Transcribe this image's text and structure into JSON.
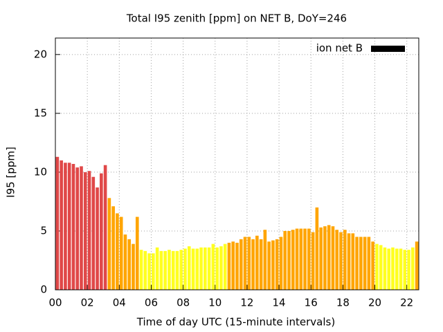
{
  "chart_data": {
    "type": "bar",
    "title": "Total I95 zenith [ppm] on NET B, DoY=246",
    "xlabel": "Time of day UTC (15-minute intervals)",
    "ylabel": "I95 [ppm]",
    "x": [
      0,
      0.25,
      0.5,
      0.75,
      1,
      1.25,
      1.5,
      1.75,
      2,
      2.25,
      2.5,
      2.75,
      3,
      3.25,
      3.5,
      3.75,
      4,
      4.25,
      4.5,
      4.75,
      5,
      5.25,
      5.5,
      5.75,
      6,
      6.25,
      6.5,
      6.75,
      7,
      7.25,
      7.5,
      7.75,
      8,
      8.25,
      8.5,
      8.75,
      9,
      9.25,
      9.5,
      9.75,
      10,
      10.25,
      10.5,
      10.75,
      11,
      11.25,
      11.5,
      11.75,
      12,
      12.25,
      12.5,
      12.75,
      13,
      13.25,
      13.5,
      13.75,
      14,
      14.25,
      14.5,
      14.75,
      15,
      15.25,
      15.5,
      15.75,
      16,
      16.25,
      16.5,
      16.75,
      17,
      17.25,
      17.5,
      17.75,
      18,
      18.25,
      18.5,
      18.75,
      19,
      19.25,
      19.5,
      19.75,
      20,
      20.25,
      20.5,
      20.75,
      21,
      21.25,
      21.5,
      21.75,
      22,
      22.25,
      22.5
    ],
    "series": [
      {
        "name": "ion net B",
        "color": "#000000",
        "values": [
          11.3,
          11.0,
          10.8,
          10.8,
          10.7,
          10.4,
          10.5,
          10.0,
          10.1,
          9.6,
          8.7,
          9.9,
          10.6,
          7.8,
          7.1,
          6.5,
          6.2,
          4.7,
          4.3,
          3.9,
          6.2,
          3.4,
          3.3,
          3.1,
          3.1,
          3.6,
          3.3,
          3.3,
          3.4,
          3.3,
          3.3,
          3.4,
          3.5,
          3.7,
          3.5,
          3.5,
          3.6,
          3.6,
          3.6,
          3.9,
          3.6,
          3.7,
          3.9,
          4.0,
          4.1,
          4.0,
          4.3,
          4.5,
          4.5,
          4.3,
          4.6,
          4.3,
          5.1,
          4.1,
          4.2,
          4.3,
          4.5,
          5.0,
          5.0,
          5.1,
          5.2,
          5.2,
          5.2,
          5.2,
          4.9,
          7.0,
          5.3,
          5.4,
          5.5,
          5.4,
          5.1,
          4.9,
          5.1,
          4.8,
          4.8,
          4.5,
          4.5,
          4.5,
          4.5,
          4.1,
          3.9,
          3.8,
          3.6,
          3.5,
          3.6,
          3.5,
          3.5,
          3.4,
          3.4,
          3.6,
          4.1
        ],
        "colors": [
          "#e04848",
          "#e04848",
          "#e04848",
          "#e04848",
          "#e04848",
          "#e04848",
          "#e04848",
          "#e04848",
          "#e04848",
          "#e04848",
          "#e04848",
          "#e04848",
          "#e04848",
          "#ffa500",
          "#ffa500",
          "#ffa500",
          "#ffa500",
          "#ffa500",
          "#ffa500",
          "#ffa500",
          "#ffa500",
          "#ffff20",
          "#ffff20",
          "#ffff20",
          "#ffff20",
          "#ffff20",
          "#ffff20",
          "#ffff20",
          "#ffff20",
          "#ffff20",
          "#ffff20",
          "#ffff20",
          "#ffff20",
          "#ffff20",
          "#ffff20",
          "#ffff20",
          "#ffff20",
          "#ffff20",
          "#ffff20",
          "#ffff20",
          "#ffff20",
          "#ffff20",
          "#ffff20",
          "#ffa500",
          "#ffa500",
          "#ffa500",
          "#ffa500",
          "#ffa500",
          "#ffa500",
          "#ffa500",
          "#ffa500",
          "#ffa500",
          "#ffa500",
          "#ffa500",
          "#ffa500",
          "#ffa500",
          "#ffa500",
          "#ffa500",
          "#ffa500",
          "#ffa500",
          "#ffa500",
          "#ffa500",
          "#ffa500",
          "#ffa500",
          "#ffa500",
          "#ffa500",
          "#ffa500",
          "#ffa500",
          "#ffa500",
          "#ffa500",
          "#ffa500",
          "#ffa500",
          "#ffa500",
          "#ffa500",
          "#ffa500",
          "#ffa500",
          "#ffa500",
          "#ffa500",
          "#ffa500",
          "#ffa500",
          "#ffff20",
          "#ffff20",
          "#ffff20",
          "#ffff20",
          "#ffff20",
          "#ffff20",
          "#ffff20",
          "#ffff20",
          "#ffff20",
          "#ffff20",
          "#ffa500"
        ]
      }
    ],
    "xlim": [
      0,
      22.75
    ],
    "ylim": [
      0,
      21.4
    ],
    "xticks": [
      {
        "value": 0,
        "label": "00"
      },
      {
        "value": 2,
        "label": "02"
      },
      {
        "value": 4,
        "label": "04"
      },
      {
        "value": 6,
        "label": "06"
      },
      {
        "value": 8,
        "label": "08"
      },
      {
        "value": 10,
        "label": "10"
      },
      {
        "value": 12,
        "label": "12"
      },
      {
        "value": 14,
        "label": "14"
      },
      {
        "value": 16,
        "label": "16"
      },
      {
        "value": 18,
        "label": "18"
      },
      {
        "value": 20,
        "label": "20"
      },
      {
        "value": 22,
        "label": "22"
      }
    ],
    "yticks": [
      0,
      5,
      10,
      15,
      20
    ],
    "grid": true,
    "legend": "top right"
  }
}
